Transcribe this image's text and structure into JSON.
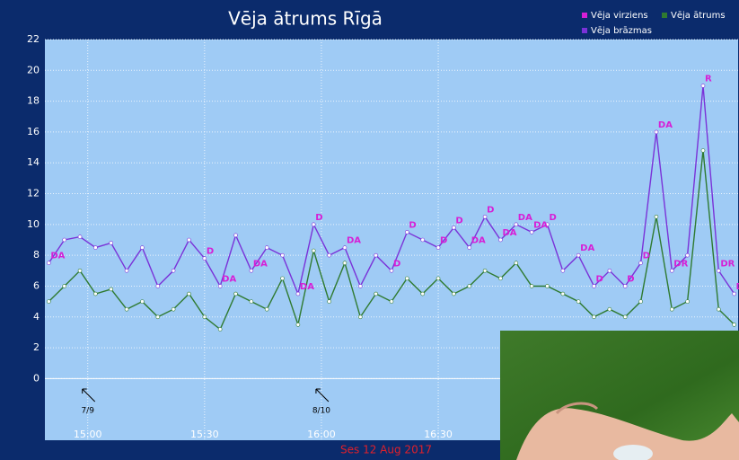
{
  "chart_data": {
    "type": "line",
    "title": "Vēja ātrums Rīgā",
    "xlabel": "Ses 12 Aug 2017",
    "x": [
      "14:50",
      "14:54",
      "14:58",
      "15:02",
      "15:06",
      "15:10",
      "15:14",
      "15:18",
      "15:22",
      "15:26",
      "15:30",
      "15:34",
      "15:38",
      "15:42",
      "15:46",
      "15:50",
      "15:54",
      "15:58",
      "16:02",
      "16:06",
      "16:10",
      "16:14",
      "16:18",
      "16:22",
      "16:26",
      "16:30",
      "16:34",
      "16:38",
      "16:42",
      "16:46",
      "16:50",
      "16:54",
      "16:58",
      "17:02",
      "17:06",
      "17:10",
      "17:14",
      "17:18",
      "17:22",
      "17:26",
      "17:30",
      "17:34",
      "17:38",
      "17:42",
      "17:46"
    ],
    "series": [
      {
        "name": "Vēja brāzmas",
        "color": "#7a32d8",
        "values": [
          7.5,
          9,
          9.2,
          8.5,
          8.8,
          7,
          8.5,
          6,
          7,
          9,
          7.8,
          6,
          9.3,
          7,
          8.5,
          8,
          5.5,
          10,
          8,
          8.5,
          6,
          8,
          7,
          9.5,
          9,
          8.5,
          9.8,
          8.5,
          10.5,
          9,
          10,
          9.5,
          10,
          7,
          8,
          6,
          7,
          6,
          7.5,
          16,
          7,
          8,
          19,
          7,
          5.5
        ]
      },
      {
        "name": "Vēja ātrums",
        "color": "#2f7a30",
        "values": [
          5,
          6,
          7,
          5.5,
          5.8,
          4.5,
          5,
          4,
          4.5,
          5.5,
          4,
          3.2,
          5.5,
          5,
          4.5,
          6.5,
          3.5,
          8.3,
          5,
          7.5,
          4,
          5.5,
          5,
          6.5,
          5.5,
          6.5,
          5.5,
          6,
          7,
          6.5,
          7.5,
          6,
          6,
          5.5,
          5,
          4,
          4.5,
          4,
          5,
          10.5,
          4.5,
          5,
          14.8,
          4.5,
          3.5
        ]
      }
    ],
    "direction": {
      "name": "Vēja virziens",
      "color": "#d61fd6",
      "labels": [
        "DA",
        null,
        null,
        null,
        null,
        null,
        null,
        null,
        null,
        null,
        "D",
        "DA",
        null,
        "DA",
        null,
        null,
        "DA",
        "D",
        null,
        "DA",
        null,
        null,
        "D",
        "D",
        null,
        "D",
        "D",
        "DA",
        "D",
        "DA",
        "DA",
        "DA",
        "D",
        null,
        "DA",
        "D",
        null,
        "D",
        "D",
        "DA",
        "DR",
        null,
        "R",
        "DR",
        "DR"
      ]
    },
    "annotations": [
      {
        "x": "15:00",
        "label": "7/9"
      },
      {
        "x": "16:00",
        "label": "8/10"
      }
    ],
    "xlim": [
      "14:49",
      "17:47"
    ],
    "xticks": [
      "15:00",
      "15:30",
      "16:00",
      "16:30"
    ],
    "ylim": [
      -4,
      22
    ],
    "yticks": [
      0,
      2,
      4,
      6,
      8,
      10,
      12,
      14,
      16,
      18,
      20,
      22
    ],
    "grid": true
  }
}
